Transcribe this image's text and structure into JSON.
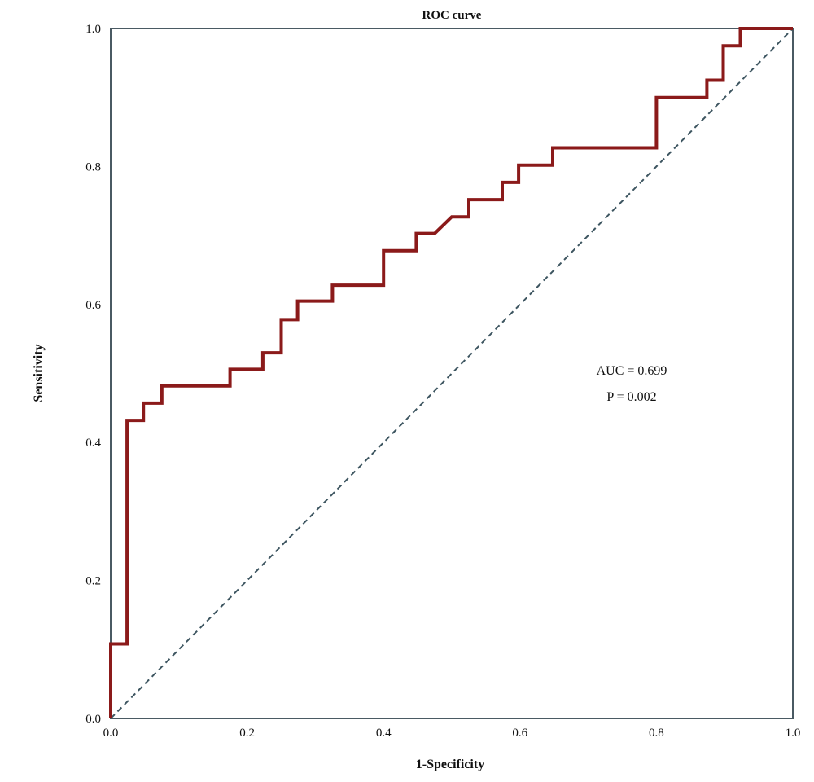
{
  "chart_data": {
    "type": "line",
    "title": "ROC curve",
    "xlabel": "1-Specificity",
    "ylabel": "Sensitivity",
    "xlim": [
      0,
      1
    ],
    "ylim": [
      0,
      1
    ],
    "x_ticks": [
      "0.0",
      "0.2",
      "0.4",
      "0.6",
      "0.8",
      "1.0"
    ],
    "y_ticks": [
      "0.0",
      "0.2",
      "0.4",
      "0.6",
      "0.8",
      "1.0"
    ],
    "grid": false,
    "series": [
      {
        "kind": "roc-step",
        "color": "#8b1a1a",
        "points": [
          [
            0.0,
            0.0
          ],
          [
            0.0,
            0.108
          ],
          [
            0.024,
            0.108
          ],
          [
            0.024,
            0.432
          ],
          [
            0.048,
            0.432
          ],
          [
            0.048,
            0.457
          ],
          [
            0.075,
            0.457
          ],
          [
            0.075,
            0.482
          ],
          [
            0.175,
            0.482
          ],
          [
            0.175,
            0.506
          ],
          [
            0.223,
            0.506
          ],
          [
            0.223,
            0.53
          ],
          [
            0.25,
            0.53
          ],
          [
            0.25,
            0.578
          ],
          [
            0.274,
            0.578
          ],
          [
            0.274,
            0.605
          ],
          [
            0.325,
            0.605
          ],
          [
            0.325,
            0.628
          ],
          [
            0.4,
            0.628
          ],
          [
            0.4,
            0.678
          ],
          [
            0.448,
            0.678
          ],
          [
            0.448,
            0.703
          ],
          [
            0.475,
            0.703
          ],
          [
            0.5,
            0.727
          ],
          [
            0.525,
            0.727
          ],
          [
            0.525,
            0.752
          ],
          [
            0.574,
            0.752
          ],
          [
            0.574,
            0.777
          ],
          [
            0.598,
            0.777
          ],
          [
            0.598,
            0.802
          ],
          [
            0.648,
            0.802
          ],
          [
            0.648,
            0.827
          ],
          [
            0.8,
            0.827
          ],
          [
            0.8,
            0.9
          ],
          [
            0.874,
            0.9
          ],
          [
            0.874,
            0.925
          ],
          [
            0.898,
            0.925
          ],
          [
            0.898,
            0.975
          ],
          [
            0.923,
            0.975
          ],
          [
            0.923,
            1.0
          ],
          [
            1.0,
            1.0
          ]
        ]
      },
      {
        "kind": "reference-diagonal",
        "color": "#3d5560",
        "points": [
          [
            0,
            0
          ],
          [
            1,
            1
          ]
        ]
      }
    ],
    "annotations": [
      "AUC = 0.699",
      "P = 0.002"
    ]
  }
}
